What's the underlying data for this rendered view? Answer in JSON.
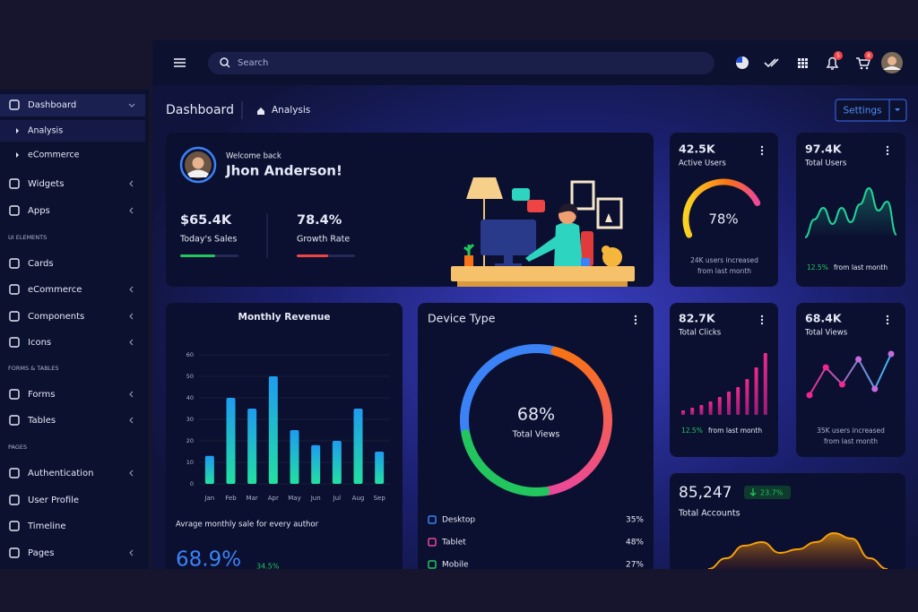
{
  "header": {
    "search_placeholder": "Search",
    "notification_count": "5",
    "cart_count": "8"
  },
  "sidebar": [
    "Dashboard",
    "Analysis",
    "eCommerce",
    "Widgets",
    "Apps",
    "UI ELEMENTS",
    "Cards",
    "eCommerce",
    "Components",
    "Icons",
    "FORMS & TABLES",
    "Forms",
    "Tables",
    "PAGES",
    "Authentication",
    "User Profile",
    "Timeline",
    "Pages"
  ],
  "breadcrumb": {
    "title": "Dashboard",
    "current": "Analysis",
    "button": "Settings"
  },
  "welcome": {
    "greeting": "Welcome back",
    "name": "Jhon Anderson!",
    "stats": [
      {
        "value": "$65.4K",
        "label": "Today's Sales",
        "progress": 60,
        "xlim": [
          0,
          100
        ],
        "color": "#22c55e"
      },
      {
        "value": "78.4%",
        "label": "Growth Rate",
        "progress": 54,
        "xlim": [
          0,
          100
        ],
        "color": "#ef4444"
      }
    ]
  },
  "active_users": {
    "value": "42.5K",
    "label": "Active Users",
    "gauge": {
      "type": "gauge",
      "value": 78,
      "value_label": "78%",
      "ylim": [
        0,
        100
      ]
    },
    "note": [
      "24K users increased",
      "from last month"
    ]
  },
  "total_users": {
    "value": "97.4K",
    "label": "Total Users",
    "chart": {
      "type": "area",
      "values": [
        0,
        20,
        33,
        15,
        33,
        17,
        37,
        55,
        30,
        40,
        3
      ],
      "ylim": [
        0,
        60
      ],
      "color": "#22d39a"
    },
    "change": "12.5%",
    "note": "from last month"
  },
  "monthly_revenue": {
    "type": "bar",
    "title": "Monthly Revenue",
    "categories": [
      "Jan",
      "Feb",
      "Mar",
      "Apr",
      "May",
      "Jun",
      "Jul",
      "Aug",
      "Sep"
    ],
    "values": [
      13,
      40,
      35,
      50,
      25,
      18,
      20,
      35,
      15
    ],
    "ylim": [
      0,
      60
    ],
    "yticks": [
      0,
      10,
      20,
      30,
      40,
      50,
      60
    ],
    "grid": true,
    "caption": "Avrage monthly sale for every author",
    "average": "68.9%",
    "change": "34.5%"
  },
  "device_type": {
    "type": "donut",
    "title": "Device Type",
    "center_value": "68%",
    "center_label": "Total Views",
    "items": [
      {
        "name": "Desktop",
        "value": 35,
        "value_label": "35%",
        "color": "#3b82f6"
      },
      {
        "name": "Tablet",
        "value": 48,
        "value_label": "48%",
        "color": "#ec4899"
      },
      {
        "name": "Mobile",
        "value": 27,
        "value_label": "27%",
        "color": "#22c55e"
      }
    ]
  },
  "total_clicks": {
    "value": "82.7K",
    "label": "Total Clicks",
    "chart": {
      "type": "bar",
      "values": [
        5,
        8,
        11,
        15,
        20,
        26,
        31,
        40,
        53,
        69
      ],
      "ylim": [
        0,
        70
      ],
      "color": "#d6208f"
    },
    "change": "12.5%",
    "note": "from last month"
  },
  "total_views": {
    "value": "68.4K",
    "label": "Total Views",
    "chart": {
      "type": "line",
      "values": [
        19,
        50,
        31,
        59,
        26,
        65
      ],
      "ylim": [
        0,
        80
      ],
      "color": "#e83e8c"
    },
    "note": [
      "35K users increased",
      "from last month"
    ]
  },
  "total_accounts": {
    "value": "85,247",
    "change": "23.7%",
    "label": "Total Accounts",
    "chart": {
      "type": "area",
      "values": [
        0,
        12,
        26,
        30,
        18,
        22,
        30,
        40,
        34,
        12,
        0
      ],
      "ylim": [
        0,
        50
      ],
      "color": "#f59e0b"
    }
  }
}
